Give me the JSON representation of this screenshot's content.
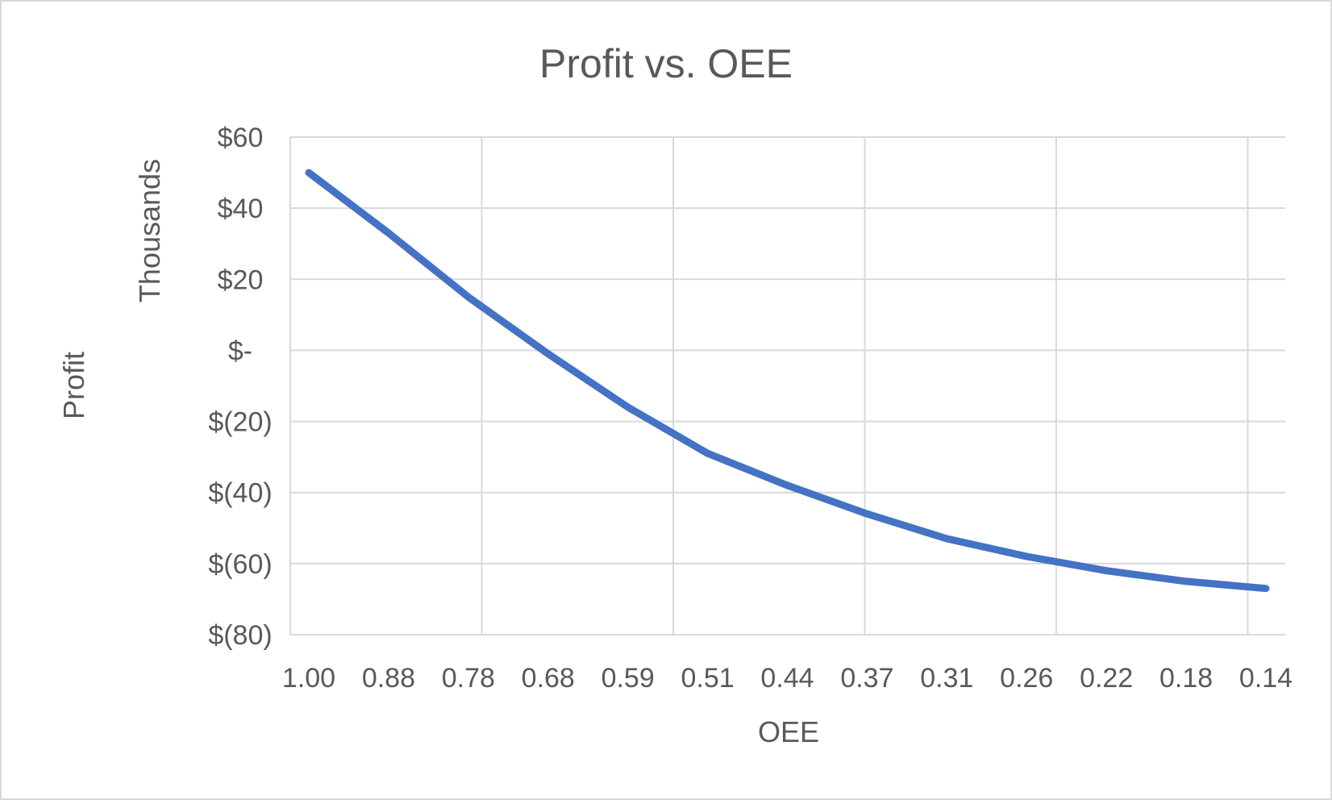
{
  "chart_data": {
    "type": "line",
    "title": "Profit vs. OEE",
    "xlabel": "OEE",
    "ylabel": "Profit",
    "y_units_label": "Thousands",
    "categories": [
      "1.00",
      "0.88",
      "0.78",
      "0.68",
      "0.59",
      "0.51",
      "0.44",
      "0.37",
      "0.31",
      "0.26",
      "0.22",
      "0.18",
      "0.14"
    ],
    "series": [
      {
        "values": [
          50,
          33,
          15,
          -1,
          -16,
          -29,
          -38,
          -46,
          -53,
          -58,
          -62,
          -65,
          -67
        ]
      }
    ],
    "ylim": [
      -80,
      60
    ],
    "y_ticks": [
      60,
      40,
      20,
      0,
      -20,
      -40,
      -60,
      -80
    ],
    "y_tick_labels": [
      "$60",
      "$40",
      "$20",
      "$-",
      "$(20)",
      "$(40)",
      "$(60)",
      "$(80)"
    ],
    "grid": true,
    "legend": "none",
    "line_color": "#4472c4",
    "grid_color": "#d9d9d9",
    "text_color": "#595959"
  }
}
